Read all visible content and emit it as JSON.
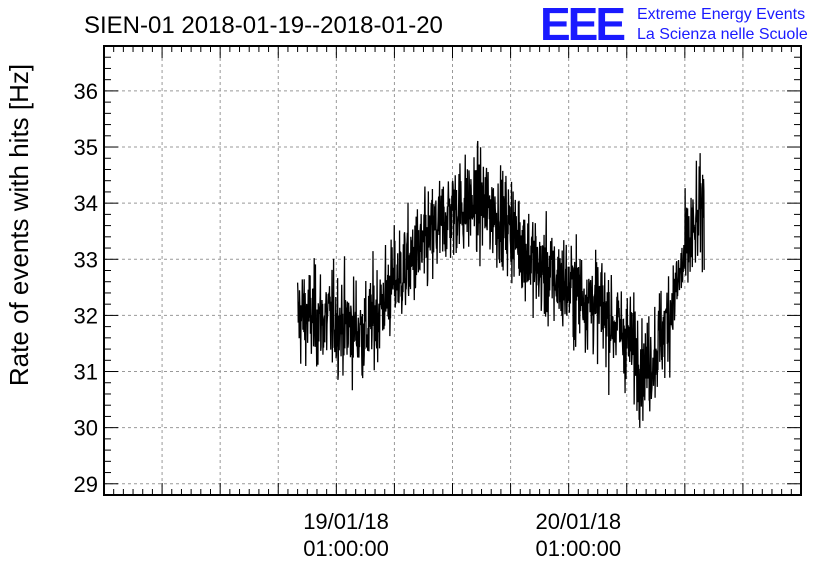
{
  "chart_data": {
    "type": "line",
    "title": "SIEN-01 2018-01-19--2018-01-20",
    "xlabel": "",
    "ylabel": "Rate of events with hits [Hz]",
    "ylim": [
      28.8,
      36.8
    ],
    "xlim": [
      "2018-01-18 00:00:00",
      "2018-01-21 00:00:00"
    ],
    "yticks": [
      29,
      30,
      31,
      32,
      33,
      34,
      35,
      36
    ],
    "xticks": [
      {
        "t": "2018-01-19 01:00:00",
        "line1": "19/01/18",
        "line2": "01:00:00"
      },
      {
        "t": "2018-01-20 01:00:00",
        "line1": "20/01/18",
        "line2": "01:00:00"
      }
    ],
    "x_range_data": [
      "2018-01-18 20:00:00",
      "2018-01-20 14:00:00"
    ],
    "trend": [
      {
        "t": "2018-01-18 20:00",
        "v": 32.0
      },
      {
        "t": "2018-01-19 00:00",
        "v": 31.9
      },
      {
        "t": "2018-01-19 03:00",
        "v": 31.7
      },
      {
        "t": "2018-01-19 06:00",
        "v": 32.6
      },
      {
        "t": "2018-01-19 09:00",
        "v": 33.2
      },
      {
        "t": "2018-01-19 12:00",
        "v": 33.9
      },
      {
        "t": "2018-01-19 15:00",
        "v": 34.0
      },
      {
        "t": "2018-01-19 18:00",
        "v": 33.6
      },
      {
        "t": "2018-01-19 21:00",
        "v": 32.8
      },
      {
        "t": "2018-01-20 00:00",
        "v": 32.5
      },
      {
        "t": "2018-01-20 03:00",
        "v": 32.2
      },
      {
        "t": "2018-01-20 06:00",
        "v": 31.6
      },
      {
        "t": "2018-01-20 08:00",
        "v": 31.0
      },
      {
        "t": "2018-01-20 10:00",
        "v": 31.8
      },
      {
        "t": "2018-01-20 12:00",
        "v": 33.0
      },
      {
        "t": "2018-01-20 14:00",
        "v": 34.0
      }
    ],
    "grid": true,
    "line_color": "#000000",
    "grid_color": "#999999"
  },
  "logo": {
    "mark": "EEE",
    "line1": "Extreme Energy Events",
    "line2": "La Scienza nelle Scuole",
    "color": "#1a1aff"
  }
}
